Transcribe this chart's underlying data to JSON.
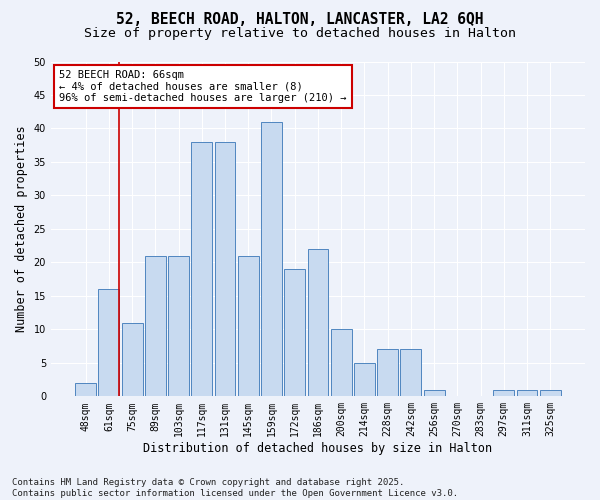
{
  "title_line1": "52, BEECH ROAD, HALTON, LANCASTER, LA2 6QH",
  "title_line2": "Size of property relative to detached houses in Halton",
  "xlabel": "Distribution of detached houses by size in Halton",
  "ylabel": "Number of detached properties",
  "categories": [
    "48sqm",
    "61sqm",
    "75sqm",
    "89sqm",
    "103sqm",
    "117sqm",
    "131sqm",
    "145sqm",
    "159sqm",
    "172sqm",
    "186sqm",
    "200sqm",
    "214sqm",
    "228sqm",
    "242sqm",
    "256sqm",
    "270sqm",
    "283sqm",
    "297sqm",
    "311sqm",
    "325sqm"
  ],
  "values": [
    2,
    16,
    11,
    21,
    21,
    38,
    38,
    21,
    41,
    19,
    22,
    10,
    5,
    7,
    7,
    1,
    0,
    0,
    1,
    1,
    1
  ],
  "bar_color": "#c8daf0",
  "bar_edge_color": "#4f86c0",
  "background_color": "#eef2fa",
  "grid_color": "#ffffff",
  "annotation_text": "52 BEECH ROAD: 66sqm\n← 4% of detached houses are smaller (8)\n96% of semi-detached houses are larger (210) →",
  "annotation_box_facecolor": "#ffffff",
  "annotation_box_edge": "#cc0000",
  "vline_color": "#cc0000",
  "vline_x": 1.425,
  "ylim": [
    0,
    50
  ],
  "yticks": [
    0,
    5,
    10,
    15,
    20,
    25,
    30,
    35,
    40,
    45,
    50
  ],
  "footer": "Contains HM Land Registry data © Crown copyright and database right 2025.\nContains public sector information licensed under the Open Government Licence v3.0.",
  "title_fontsize": 10.5,
  "subtitle_fontsize": 9.5,
  "axis_label_fontsize": 8.5,
  "tick_fontsize": 7,
  "annotation_fontsize": 7.5,
  "footer_fontsize": 6.5
}
